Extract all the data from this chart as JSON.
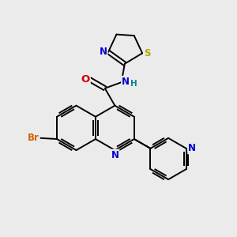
{
  "bg_color": "#ebebeb",
  "atom_colors": {
    "C": "#000000",
    "N": "#0000cc",
    "O": "#cc0000",
    "S": "#aaaa00",
    "Br": "#cc6600",
    "H": "#008888"
  },
  "font_size": 8.5,
  "bond_lw": 1.4,
  "figsize": [
    3.0,
    3.0
  ],
  "dpi": 100
}
